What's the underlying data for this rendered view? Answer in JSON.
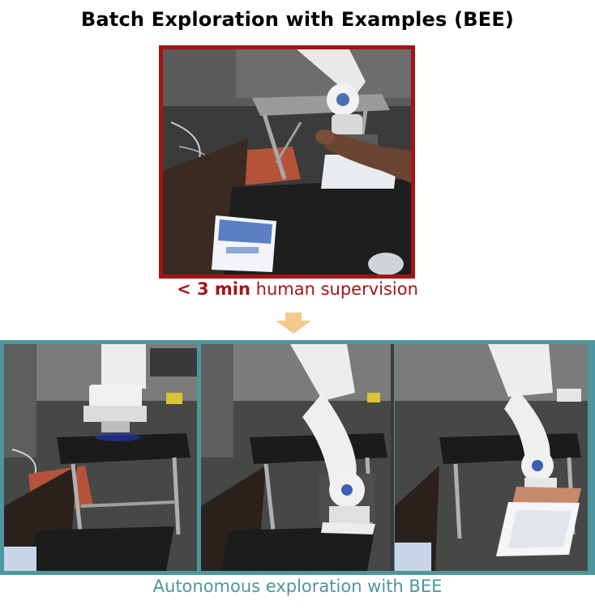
{
  "figure": {
    "title": "Batch Exploration with Examples (BEE)",
    "human_caption": {
      "bold": "< 3 min",
      "rest": " human supervision"
    },
    "autonomous_caption": "Autonomous exploration with BEE"
  },
  "colors": {
    "human_frame": "#a31515",
    "autonomous_frame": "#4d96a0",
    "arrow": "#f5c98a"
  },
  "panels": [
    {
      "id": "human-demo",
      "pose": "reaching-drawer-with-human-hand"
    },
    {
      "id": "explore-1",
      "pose": "arm-up-over-table"
    },
    {
      "id": "explore-2",
      "pose": "arm-down-at-drawer"
    },
    {
      "id": "explore-3",
      "pose": "arm-pulling-drawer-open"
    }
  ]
}
